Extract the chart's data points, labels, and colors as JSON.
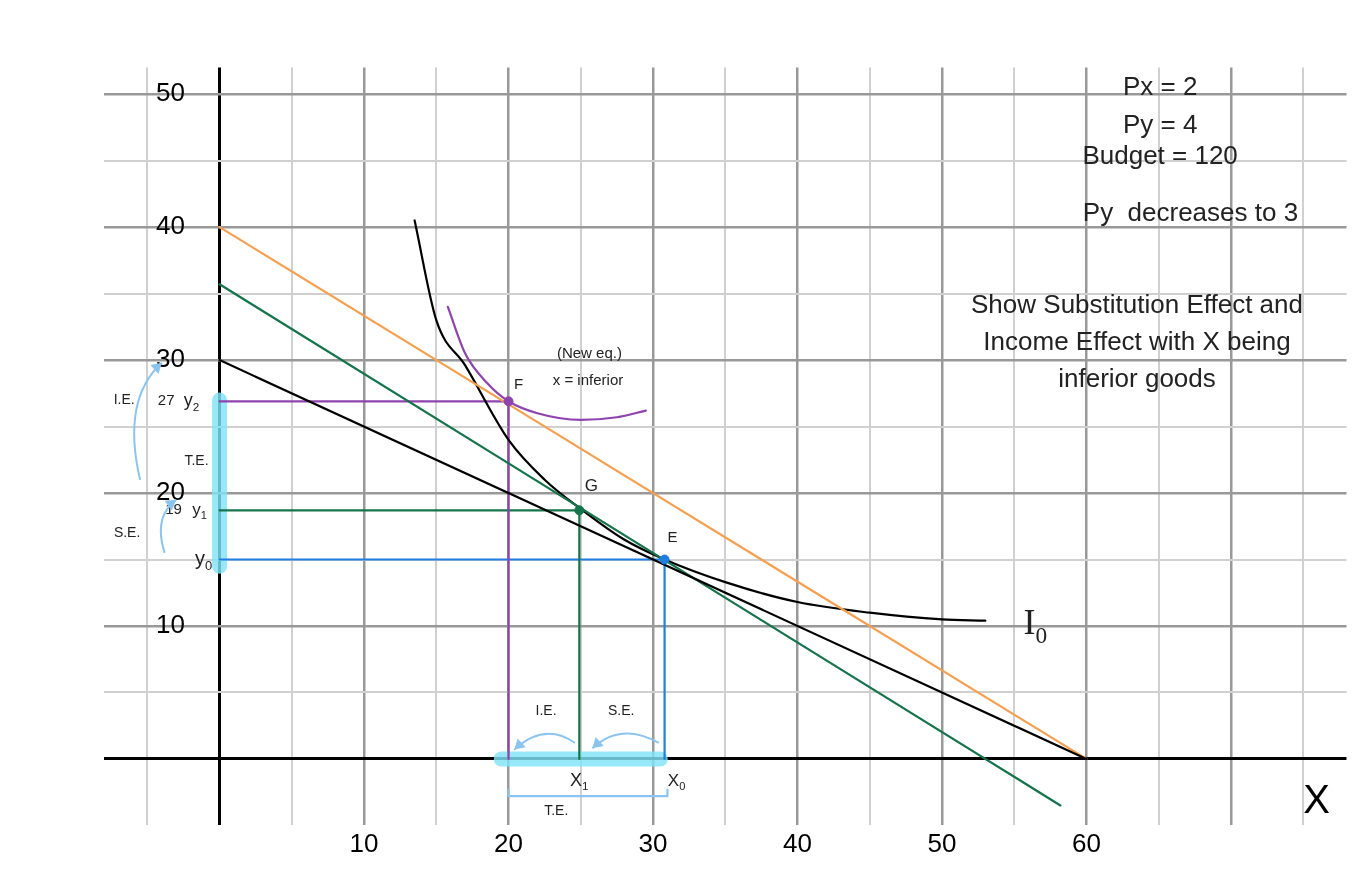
{
  "chart_data": {
    "type": "line",
    "xlabel": "X",
    "xlim": [
      -8,
      78
    ],
    "ylim": [
      -5,
      52
    ],
    "xticks": [
      {
        "value": -5,
        "label": null
      },
      {
        "value": 0,
        "label": null
      },
      {
        "value": 5,
        "label": null
      },
      10,
      {
        "value": 15,
        "label": null
      },
      20,
      {
        "value": 25,
        "label": null
      },
      30,
      {
        "value": 35,
        "label": null
      },
      40,
      {
        "value": 45,
        "label": null
      },
      50,
      {
        "value": 55,
        "label": null
      },
      60,
      {
        "value": 65,
        "label": null
      },
      {
        "value": 70,
        "label": null
      },
      {
        "value": 75,
        "label": null
      }
    ],
    "yticks": [
      {
        "value": 0,
        "label": null
      },
      {
        "value": 5,
        "label": null
      },
      10,
      {
        "value": 15,
        "label": null
      },
      20,
      {
        "value": 25,
        "label": null
      },
      30,
      {
        "value": 35,
        "label": null
      },
      40,
      {
        "value": 45,
        "label": null
      },
      50
    ],
    "grid": true,
    "legend": false,
    "series": [
      {
        "type": "scatter",
        "marker": "circle",
        "x": [
          20,
          24.9,
          30.8
        ],
        "values": [
          26.9,
          18.7,
          15
        ],
        "colors": [
          "#8e44ad",
          "#15744c",
          "#1e7fe0"
        ]
      },
      {
        "color": "#000000",
        "x": [
          0,
          60
        ],
        "values": [
          30,
          0
        ]
      },
      {
        "color": "#f5a050",
        "x": [
          0,
          60
        ],
        "values": [
          40,
          0
        ]
      },
      {
        "color": "#15744c",
        "x": [
          0,
          58.2
        ],
        "values": [
          35.7,
          -3.5
        ]
      },
      {
        "color": "#000000",
        "x": [
          13.5,
          15,
          17,
          20,
          22.5,
          25,
          28,
          30.8,
          35,
          40,
          45,
          50,
          53
        ],
        "values": [
          40.5,
          33,
          29.6,
          24,
          21,
          18.8,
          16.5,
          15,
          13.3,
          11.8,
          11,
          10.5,
          10.4
        ]
      },
      {
        "color": "#8e44ad",
        "x": [
          15.8,
          17,
          18.5,
          20,
          22,
          25,
          27.5,
          29.5
        ],
        "values": [
          34,
          30.5,
          28.3,
          26.9,
          26,
          25.5,
          25.7,
          26.2
        ]
      },
      {
        "color": "#8e44ad",
        "x": [
          0,
          20,
          20
        ],
        "values": [
          26.9,
          26.9,
          0
        ]
      },
      {
        "color": "#15744c",
        "x": [
          0,
          24.9,
          24.9
        ],
        "values": [
          18.7,
          18.7,
          0
        ]
      },
      {
        "color": "#1e7fe0",
        "x": [
          0,
          30.8,
          30.8
        ],
        "values": [
          15,
          15,
          0
        ]
      },
      {
        "color": "#8cc4f0",
        "x": [
          20,
          20,
          31,
          31
        ],
        "values": [
          -2.3,
          -2.8,
          -2.8,
          -2.3
        ]
      },
      {
        "color": "#7fe3f7",
        "x": [
          0,
          0
        ],
        "values": [
          14.5,
          27
        ]
      },
      {
        "color": "#7fe3f7",
        "x": [
          19.5,
          30.5
        ],
        "values": [
          0,
          0
        ]
      }
    ],
    "annotations": [
      "Px = 2",
      "Py = 4",
      "Budget = 120",
      "Py  decreases to 3",
      "Show Substitution Effect and Income Effect with X being inferior goods",
      "(New eq.)",
      "x = inferior",
      "I.E.",
      "T.E.",
      "S.E.",
      "I.E.",
      "S.E.",
      "T.E.",
      "27",
      {
        "text": "F",
        "x": 20,
        "y": 26.9
      },
      {
        "text": "G",
        "x": 24.9,
        "y": 18.7
      },
      {
        "text": "E",
        "x": 30.8,
        "y": 15
      },
      {
        "text": "y$_{2}$",
        "x": 0,
        "y": 26.9
      },
      {
        "text": "19",
        "x": 0,
        "y": 18.7
      },
      {
        "text": "y$_{1}$",
        "x": 0,
        "y": 18.7
      },
      {
        "text": "y$_{0}$",
        "x": 0,
        "y": 15
      },
      {
        "text": "X$_{1}$",
        "x": 24.9,
        "y": 0
      },
      {
        "text": "X$_{0}$",
        "x": 30.8,
        "y": 0
      },
      {
        "text": "I$_{0}$",
        "x": 53,
        "y": 10.4
      }
    ]
  }
}
